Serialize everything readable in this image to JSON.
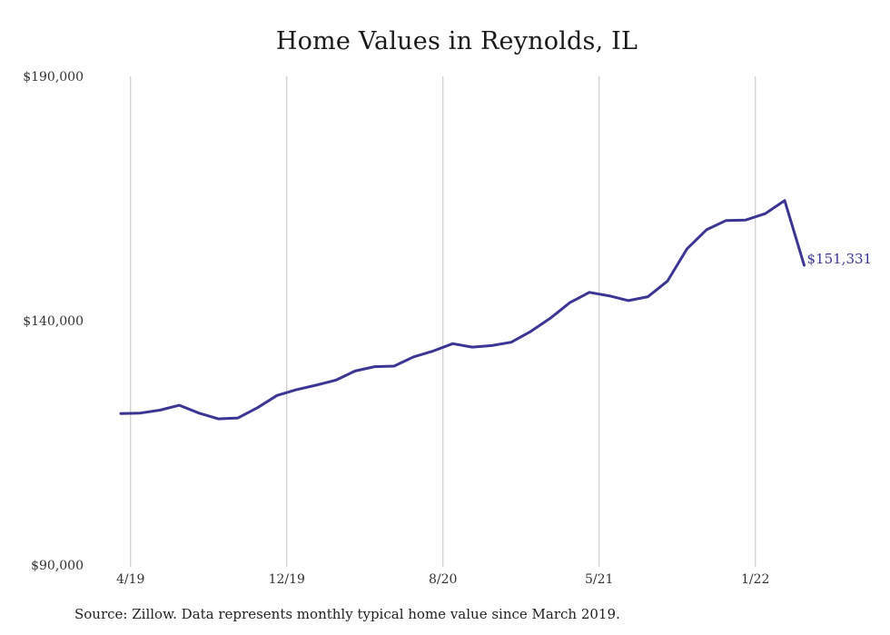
{
  "chart_data": {
    "type": "line",
    "title": "Home Values in Reynolds, IL",
    "source_note": "Source: Zillow. Data represents monthly typical home value since March 2019.",
    "ylim": [
      90000,
      190000
    ],
    "y_ticks": [
      {
        "value": 190000,
        "label": "$190,000"
      },
      {
        "value": 140000,
        "label": "$140,000"
      },
      {
        "value": 90000,
        "label": "$90,000"
      }
    ],
    "x_ticks": [
      {
        "label": "4/19",
        "index": 0.5
      },
      {
        "label": "12/19",
        "index": 8.5
      },
      {
        "label": "8/20",
        "index": 16.5
      },
      {
        "label": "5/21",
        "index": 24.5
      },
      {
        "label": "1/22",
        "index": 32.5
      }
    ],
    "grid": {
      "vertical": true,
      "horizontal": false
    },
    "line_color": "#3c3594",
    "series": [
      {
        "values": [
          121000,
          121100,
          121700,
          122700,
          121100,
          119900,
          120100,
          122200,
          124700,
          125900,
          126800,
          127800,
          129700,
          130600,
          130700,
          132600,
          133800,
          135300,
          134600,
          134900,
          135600,
          137800,
          140500,
          143700,
          145800,
          145100,
          144100,
          144900,
          148100,
          154700,
          158600,
          160500,
          160600,
          161900,
          164600,
          151331
        ]
      }
    ],
    "end_label": "$151,331"
  }
}
